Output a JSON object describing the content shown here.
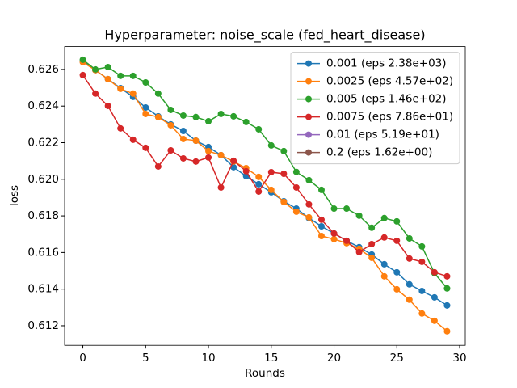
{
  "chart_data": {
    "type": "line",
    "title": "Hyperparameter: noise_scale (fed_heart_disease)",
    "x_label": "Rounds",
    "y_label": "loss",
    "x": [
      0,
      1,
      2,
      3,
      4,
      5,
      6,
      7,
      8,
      9,
      10,
      11,
      12,
      13,
      14,
      15,
      16,
      17,
      18,
      19,
      20,
      21,
      22,
      23,
      24,
      25,
      26,
      27,
      28,
      29
    ],
    "series": [
      {
        "name": "0.001 (eps 2.38e+03)",
        "color": "#1f77b4",
        "values": [
          0.62644,
          0.62596,
          0.62547,
          0.62498,
          0.6245,
          0.62392,
          0.62344,
          0.623,
          0.62264,
          0.62211,
          0.62176,
          0.62132,
          0.62066,
          0.62017,
          0.61973,
          0.61929,
          0.6188,
          0.6184,
          0.61788,
          0.61743,
          0.61704,
          0.61664,
          0.61629,
          0.61589,
          0.61536,
          0.61492,
          0.61426,
          0.6139,
          0.61355,
          0.61311
        ]
      },
      {
        "name": "0.0025 (eps 4.57e+02)",
        "color": "#ff7f0e",
        "values": [
          0.6264,
          0.62596,
          0.62547,
          0.62494,
          0.62468,
          0.62357,
          0.6234,
          0.62295,
          0.6222,
          0.62211,
          0.62154,
          0.62132,
          0.62097,
          0.62061,
          0.62013,
          0.61942,
          0.61876,
          0.61823,
          0.61792,
          0.6169,
          0.61673,
          0.61651,
          0.6162,
          0.61571,
          0.6147,
          0.61399,
          0.61342,
          0.61267,
          0.61227,
          0.6117
        ]
      },
      {
        "name": "0.005 (eps 1.46e+02)",
        "color": "#2ca02c",
        "values": [
          0.62653,
          0.626,
          0.62613,
          0.62565,
          0.62565,
          0.62529,
          0.62468,
          0.62379,
          0.62348,
          0.6234,
          0.62317,
          0.62357,
          0.62344,
          0.62313,
          0.62273,
          0.62185,
          0.62154,
          0.6204,
          0.61995,
          0.61942,
          0.6184,
          0.6184,
          0.61801,
          0.61735,
          0.61788,
          0.6177,
          0.61677,
          0.61633,
          0.61487,
          0.61404
        ]
      },
      {
        "name": "0.0075 (eps 7.86e+01)",
        "color": "#d62728",
        "values": [
          0.62569,
          0.62468,
          0.62401,
          0.62278,
          0.62216,
          0.62172,
          0.6207,
          0.62158,
          0.62114,
          0.62097,
          0.62119,
          0.61955,
          0.62101,
          0.62044,
          0.61933,
          0.62039,
          0.6203,
          0.61955,
          0.61863,
          0.61779,
          0.61704,
          0.61664,
          0.61602,
          0.61646,
          0.61682,
          0.61664,
          0.61567,
          0.61549,
          0.61492,
          0.6147
        ]
      },
      {
        "name": "0.01 (eps 5.19e+01)",
        "color": "#9467bd",
        "values": [
          null,
          null,
          null,
          null,
          null,
          null,
          null,
          null,
          null,
          null,
          null,
          null,
          null,
          null,
          null,
          null,
          null,
          null,
          null,
          null,
          null,
          null,
          null,
          null,
          null,
          null,
          null,
          null,
          null,
          null
        ]
      },
      {
        "name": "0.2 (eps 1.62e+00)",
        "color": "#8c564b",
        "values": [
          null,
          null,
          null,
          null,
          null,
          null,
          null,
          null,
          null,
          null,
          null,
          null,
          null,
          null,
          null,
          null,
          null,
          null,
          null,
          null,
          null,
          null,
          null,
          null,
          null,
          null,
          null,
          null,
          null,
          null
        ]
      }
    ],
    "xlim": [
      -1.45,
      30.45
    ],
    "xticks": [
      0,
      5,
      10,
      15,
      20,
      25,
      30
    ],
    "ylim": [
      0.61093,
      0.62725
    ],
    "yticks": [
      0.612,
      0.614,
      0.616,
      0.618,
      {
        "value": 0.62,
        "label": "0.620"
      },
      0.622,
      0.624,
      0.626
    ],
    "legend": "upper right"
  }
}
